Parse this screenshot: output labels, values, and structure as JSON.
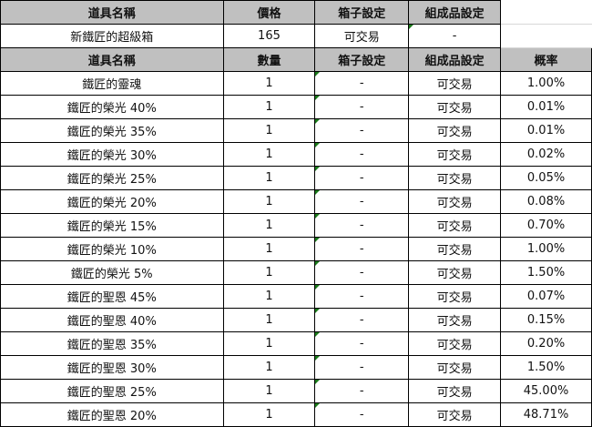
{
  "box_header": {
    "name": "道具名稱",
    "price": "價格",
    "box_setting": "箱子設定",
    "component_setting": "組成品設定"
  },
  "box": {
    "name": "新鐵匠的超級箱",
    "price": "165",
    "box_setting": "可交易",
    "component_setting": "-"
  },
  "items_header": {
    "name": "道具名稱",
    "quantity": "數量",
    "box_setting": "箱子設定",
    "component_setting": "組成品設定",
    "probability": "概率"
  },
  "items": [
    {
      "name": "鐵匠的靈魂",
      "quantity": "1",
      "box_setting": "-",
      "component_setting": "可交易",
      "probability": "1.00%"
    },
    {
      "name": "鐵匠的榮光 40%",
      "quantity": "1",
      "box_setting": "-",
      "component_setting": "可交易",
      "probability": "0.01%"
    },
    {
      "name": "鐵匠的榮光 35%",
      "quantity": "1",
      "box_setting": "-",
      "component_setting": "可交易",
      "probability": "0.01%"
    },
    {
      "name": "鐵匠的榮光 30%",
      "quantity": "1",
      "box_setting": "-",
      "component_setting": "可交易",
      "probability": "0.02%"
    },
    {
      "name": "鐵匠的榮光 25%",
      "quantity": "1",
      "box_setting": "-",
      "component_setting": "可交易",
      "probability": "0.05%"
    },
    {
      "name": "鐵匠的榮光 20%",
      "quantity": "1",
      "box_setting": "-",
      "component_setting": "可交易",
      "probability": "0.08%"
    },
    {
      "name": "鐵匠的榮光 15%",
      "quantity": "1",
      "box_setting": "-",
      "component_setting": "可交易",
      "probability": "0.70%"
    },
    {
      "name": "鐵匠的榮光 10%",
      "quantity": "1",
      "box_setting": "-",
      "component_setting": "可交易",
      "probability": "1.00%"
    },
    {
      "name": "鐵匠的榮光 5%",
      "quantity": "1",
      "box_setting": "-",
      "component_setting": "可交易",
      "probability": "1.50%"
    },
    {
      "name": "鐵匠的聖恩 45%",
      "quantity": "1",
      "box_setting": "-",
      "component_setting": "可交易",
      "probability": "0.07%"
    },
    {
      "name": "鐵匠的聖恩 40%",
      "quantity": "1",
      "box_setting": "-",
      "component_setting": "可交易",
      "probability": "0.15%"
    },
    {
      "name": "鐵匠的聖恩 35%",
      "quantity": "1",
      "box_setting": "-",
      "component_setting": "可交易",
      "probability": "0.20%"
    },
    {
      "name": "鐵匠的聖恩 30%",
      "quantity": "1",
      "box_setting": "-",
      "component_setting": "可交易",
      "probability": "1.50%"
    },
    {
      "name": "鐵匠的聖恩 25%",
      "quantity": "1",
      "box_setting": "-",
      "component_setting": "可交易",
      "probability": "45.00%"
    },
    {
      "name": "鐵匠的聖恩 20%",
      "quantity": "1",
      "box_setting": "-",
      "component_setting": "可交易",
      "probability": "48.71%"
    }
  ],
  "colors": {
    "header_bg": "#c0c0c0",
    "comment_marker": "#1a7a1a"
  }
}
